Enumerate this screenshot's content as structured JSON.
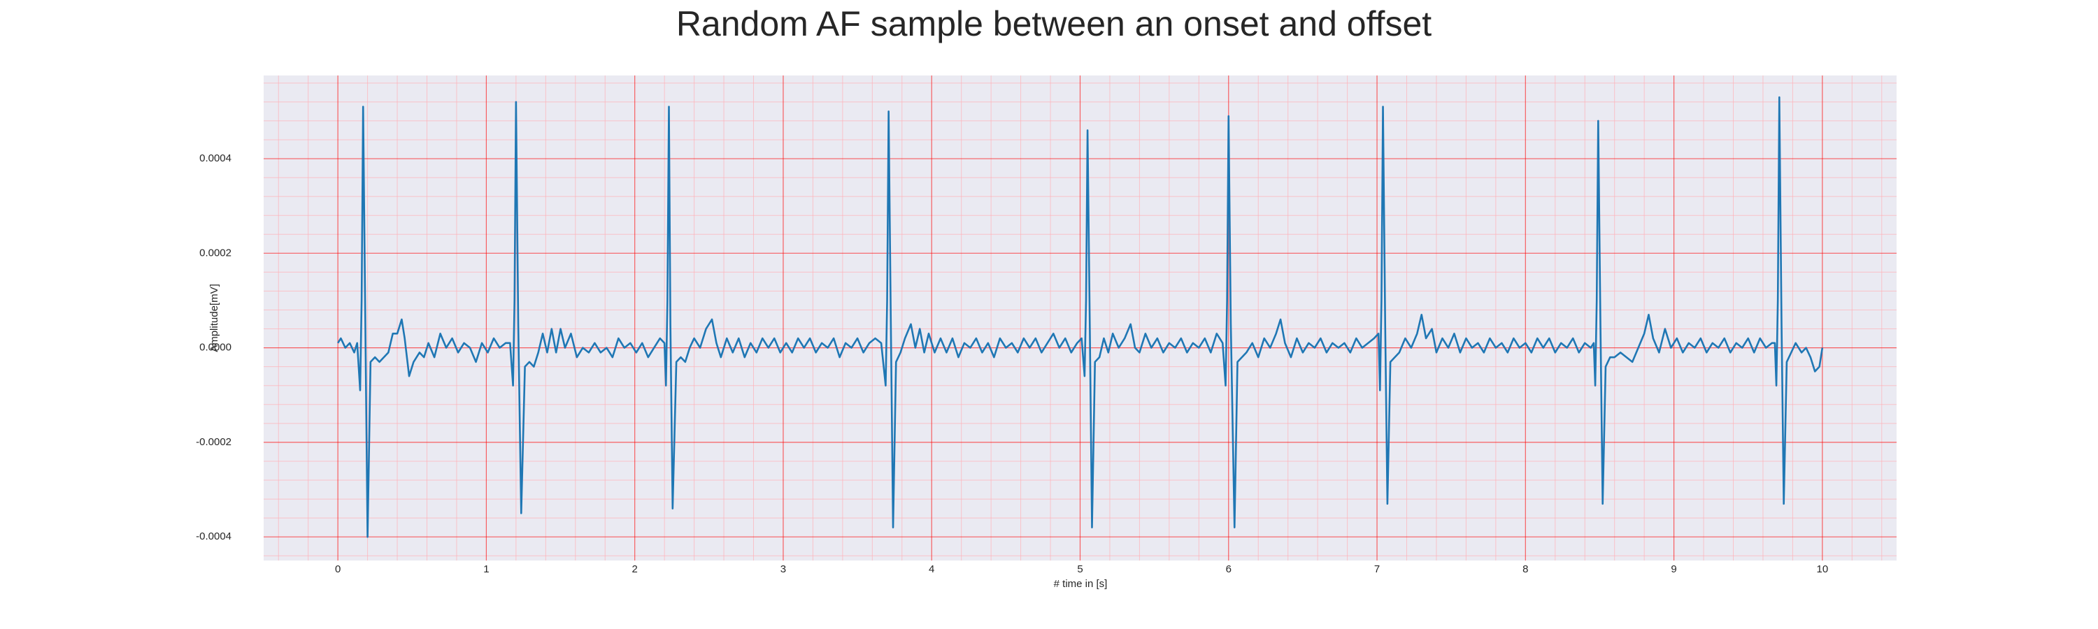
{
  "chart_data": {
    "type": "line",
    "title": "Random AF sample between an onset and offset",
    "x_label": "# time in [s]",
    "y_label": "Amplitude[mV]",
    "xlim": [
      -0.5,
      10.5
    ],
    "ylim": [
      -0.00045,
      0.000576
    ],
    "xticks": [
      0,
      1,
      2,
      3,
      4,
      5,
      6,
      7,
      8,
      9,
      10
    ],
    "yticks": [
      -0.0004,
      -0.0002,
      {
        "value": 0,
        "label": "0.0000"
      },
      0.0002,
      0.0004
    ],
    "x_minor_ticks": [
      -0.4,
      -0.2,
      0.2,
      0.4,
      0.6,
      0.8,
      1.2,
      1.4,
      1.6,
      1.8,
      2.2,
      2.4,
      2.6,
      2.8,
      3.2,
      3.4,
      3.6,
      3.8,
      4.2,
      4.4,
      4.6,
      4.8,
      5.2,
      5.4,
      5.6,
      5.8,
      6.2,
      6.4,
      6.6,
      6.8,
      7.2,
      7.4,
      7.6,
      7.8,
      8.2,
      8.4,
      8.6,
      8.8,
      9.2,
      9.4,
      9.6,
      9.8,
      10.2,
      10.4
    ],
    "y_minor_ticks": [
      -0.00044,
      -0.00036,
      -0.00032,
      -0.00028,
      -0.00024,
      -0.00016,
      -0.00012,
      -8e-05,
      -4e-05,
      4e-05,
      8e-05,
      0.00012,
      0.00016,
      0.00024,
      0.00028,
      0.00032,
      0.00036,
      0.00044,
      0.00048,
      0.00052,
      0.00056
    ],
    "grid": true,
    "grid_color": "#ff0000",
    "minor_grid_color": "#ffb0b8",
    "background": "#eaeaf2",
    "x": [
      0,
      0.02,
      0.05,
      0.08,
      0.11,
      0.13,
      0.15,
      0.16,
      0.17,
      0.185,
      0.2,
      0.22,
      0.25,
      0.28,
      0.31,
      0.34,
      0.37,
      0.4,
      0.43,
      0.45,
      0.48,
      0.51,
      0.55,
      0.58,
      0.61,
      0.65,
      0.69,
      0.73,
      0.77,
      0.81,
      0.85,
      0.89,
      0.93,
      0.97,
      1.01,
      1.05,
      1.09,
      1.13,
      1.16,
      1.18,
      1.19,
      1.2,
      1.215,
      1.235,
      1.26,
      1.29,
      1.32,
      1.35,
      1.38,
      1.41,
      1.44,
      1.47,
      1.5,
      1.53,
      1.57,
      1.61,
      1.65,
      1.69,
      1.73,
      1.77,
      1.81,
      1.85,
      1.89,
      1.93,
      1.97,
      2.01,
      2.05,
      2.09,
      2.13,
      2.17,
      2.2,
      2.21,
      2.22,
      2.23,
      2.24,
      2.255,
      2.28,
      2.31,
      2.34,
      2.37,
      2.4,
      2.44,
      2.48,
      2.52,
      2.55,
      2.58,
      2.62,
      2.66,
      2.7,
      2.74,
      2.78,
      2.82,
      2.86,
      2.9,
      2.94,
      2.98,
      3.02,
      3.06,
      3.1,
      3.14,
      3.18,
      3.22,
      3.26,
      3.3,
      3.34,
      3.38,
      3.42,
      3.46,
      3.5,
      3.54,
      3.58,
      3.62,
      3.66,
      3.69,
      3.7,
      3.71,
      3.725,
      3.74,
      3.76,
      3.79,
      3.82,
      3.86,
      3.89,
      3.92,
      3.95,
      3.98,
      4.02,
      4.06,
      4.1,
      4.14,
      4.18,
      4.22,
      4.26,
      4.3,
      4.34,
      4.38,
      4.42,
      4.46,
      4.5,
      4.54,
      4.58,
      4.62,
      4.66,
      4.7,
      4.74,
      4.78,
      4.82,
      4.86,
      4.9,
      4.94,
      4.98,
      5.01,
      5.03,
      5.04,
      5.05,
      5.065,
      5.08,
      5.1,
      5.13,
      5.16,
      5.19,
      5.22,
      5.26,
      5.3,
      5.34,
      5.37,
      5.4,
      5.44,
      5.48,
      5.52,
      5.56,
      5.6,
      5.64,
      5.68,
      5.72,
      5.76,
      5.8,
      5.84,
      5.88,
      5.92,
      5.96,
      5.98,
      5.99,
      6,
      6.015,
      6.04,
      6.06,
      6.09,
      6.12,
      6.16,
      6.2,
      6.24,
      6.28,
      6.32,
      6.35,
      6.38,
      6.42,
      6.46,
      6.5,
      6.54,
      6.58,
      6.62,
      6.66,
      6.7,
      6.74,
      6.78,
      6.82,
      6.86,
      6.9,
      6.94,
      6.98,
      7.01,
      7.02,
      7.03,
      7.04,
      7.055,
      7.07,
      7.09,
      7.12,
      7.15,
      7.19,
      7.23,
      7.27,
      7.3,
      7.33,
      7.37,
      7.4,
      7.44,
      7.48,
      7.52,
      7.56,
      7.6,
      7.64,
      7.68,
      7.72,
      7.76,
      7.8,
      7.84,
      7.88,
      7.92,
      7.96,
      8,
      8.04,
      8.08,
      8.12,
      8.16,
      8.2,
      8.24,
      8.28,
      8.32,
      8.36,
      8.4,
      8.44,
      8.46,
      8.47,
      8.48,
      8.49,
      8.505,
      8.52,
      8.54,
      8.57,
      8.6,
      8.64,
      8.68,
      8.72,
      8.76,
      8.8,
      8.83,
      8.86,
      8.9,
      8.94,
      8.98,
      9.02,
      9.06,
      9.1,
      9.14,
      9.18,
      9.22,
      9.26,
      9.3,
      9.34,
      9.38,
      9.42,
      9.46,
      9.5,
      9.54,
      9.58,
      9.62,
      9.66,
      9.68,
      9.69,
      9.7,
      9.71,
      9.725,
      9.74,
      9.76,
      9.79,
      9.82,
      9.86,
      9.89,
      9.92,
      9.95,
      9.98,
      10
    ],
    "series": [
      {
        "color": "#1f77b4",
        "values": [
          1e-05,
          2e-05,
          0,
          1e-05,
          -1e-05,
          1e-05,
          -9e-05,
          0.0001,
          0.00051,
          5e-05,
          -0.0004,
          -3e-05,
          -2e-05,
          -3e-05,
          -2e-05,
          -1e-05,
          3e-05,
          3e-05,
          6e-05,
          2e-05,
          -6e-05,
          -3e-05,
          -1e-05,
          -2e-05,
          1e-05,
          -2e-05,
          3e-05,
          0,
          2e-05,
          -1e-05,
          1e-05,
          0,
          -3e-05,
          1e-05,
          -1e-05,
          2e-05,
          0,
          1e-05,
          1e-05,
          -8e-05,
          0.0001,
          0.00052,
          5e-05,
          -0.00035,
          -4e-05,
          -3e-05,
          -4e-05,
          -1e-05,
          3e-05,
          -1e-05,
          4e-05,
          -1e-05,
          4e-05,
          0,
          3e-05,
          -2e-05,
          0,
          -1e-05,
          1e-05,
          -1e-05,
          0,
          -2e-05,
          2e-05,
          0,
          1e-05,
          -1e-05,
          1e-05,
          -2e-05,
          0,
          2e-05,
          1e-05,
          -8e-05,
          0.0001,
          0.00051,
          5e-05,
          -0.00034,
          -3e-05,
          -2e-05,
          -3e-05,
          0,
          2e-05,
          0,
          4e-05,
          6e-05,
          1e-05,
          -2e-05,
          2e-05,
          -1e-05,
          2e-05,
          -2e-05,
          1e-05,
          -1e-05,
          2e-05,
          0,
          2e-05,
          -1e-05,
          1e-05,
          -1e-05,
          2e-05,
          0,
          2e-05,
          -1e-05,
          1e-05,
          0,
          2e-05,
          -2e-05,
          1e-05,
          0,
          2e-05,
          -1e-05,
          1e-05,
          2e-05,
          1e-05,
          -8e-05,
          0.0001,
          0.0005,
          5e-05,
          -0.00038,
          -3e-05,
          -1e-05,
          2e-05,
          5e-05,
          0,
          4e-05,
          -1e-05,
          3e-05,
          -1e-05,
          2e-05,
          -1e-05,
          2e-05,
          -2e-05,
          1e-05,
          0,
          2e-05,
          -1e-05,
          1e-05,
          -2e-05,
          2e-05,
          0,
          1e-05,
          -1e-05,
          2e-05,
          0,
          2e-05,
          -1e-05,
          1e-05,
          3e-05,
          0,
          2e-05,
          -1e-05,
          1e-05,
          2e-05,
          -6e-05,
          0.0001,
          0.00046,
          5e-05,
          -0.00038,
          -3e-05,
          -2e-05,
          2e-05,
          -1e-05,
          3e-05,
          0,
          2e-05,
          5e-05,
          0,
          -1e-05,
          3e-05,
          0,
          2e-05,
          -1e-05,
          1e-05,
          0,
          2e-05,
          -1e-05,
          1e-05,
          0,
          2e-05,
          -1e-05,
          3e-05,
          1e-05,
          -8e-05,
          0.0001,
          0.00049,
          5e-05,
          -0.00038,
          -3e-05,
          -2e-05,
          -1e-05,
          1e-05,
          -2e-05,
          2e-05,
          0,
          3e-05,
          6e-05,
          1e-05,
          -2e-05,
          2e-05,
          -1e-05,
          1e-05,
          0,
          2e-05,
          -1e-05,
          1e-05,
          0,
          1e-05,
          -1e-05,
          2e-05,
          0,
          1e-05,
          2e-05,
          3e-05,
          -9e-05,
          0.0001,
          0.00051,
          5e-05,
          -0.00033,
          -3e-05,
          -2e-05,
          -1e-05,
          2e-05,
          0,
          3e-05,
          7e-05,
          2e-05,
          4e-05,
          -1e-05,
          2e-05,
          0,
          3e-05,
          -1e-05,
          2e-05,
          0,
          1e-05,
          -1e-05,
          2e-05,
          0,
          1e-05,
          -1e-05,
          2e-05,
          0,
          1e-05,
          -1e-05,
          2e-05,
          0,
          2e-05,
          -1e-05,
          1e-05,
          0,
          2e-05,
          -1e-05,
          1e-05,
          0,
          1e-05,
          -8e-05,
          0.0001,
          0.00048,
          5e-05,
          -0.00033,
          -4e-05,
          -2e-05,
          -2e-05,
          -1e-05,
          -2e-05,
          -3e-05,
          0,
          3e-05,
          7e-05,
          2e-05,
          -1e-05,
          4e-05,
          0,
          2e-05,
          -1e-05,
          1e-05,
          0,
          2e-05,
          -1e-05,
          1e-05,
          0,
          2e-05,
          -1e-05,
          1e-05,
          0,
          2e-05,
          -1e-05,
          2e-05,
          0,
          1e-05,
          1e-05,
          -8e-05,
          0.0001,
          0.00053,
          5e-05,
          -0.00033,
          -3e-05,
          -1e-05,
          1e-05,
          -1e-05,
          0,
          -2e-05,
          -5e-05,
          -4e-05,
          0
        ]
      }
    ]
  }
}
